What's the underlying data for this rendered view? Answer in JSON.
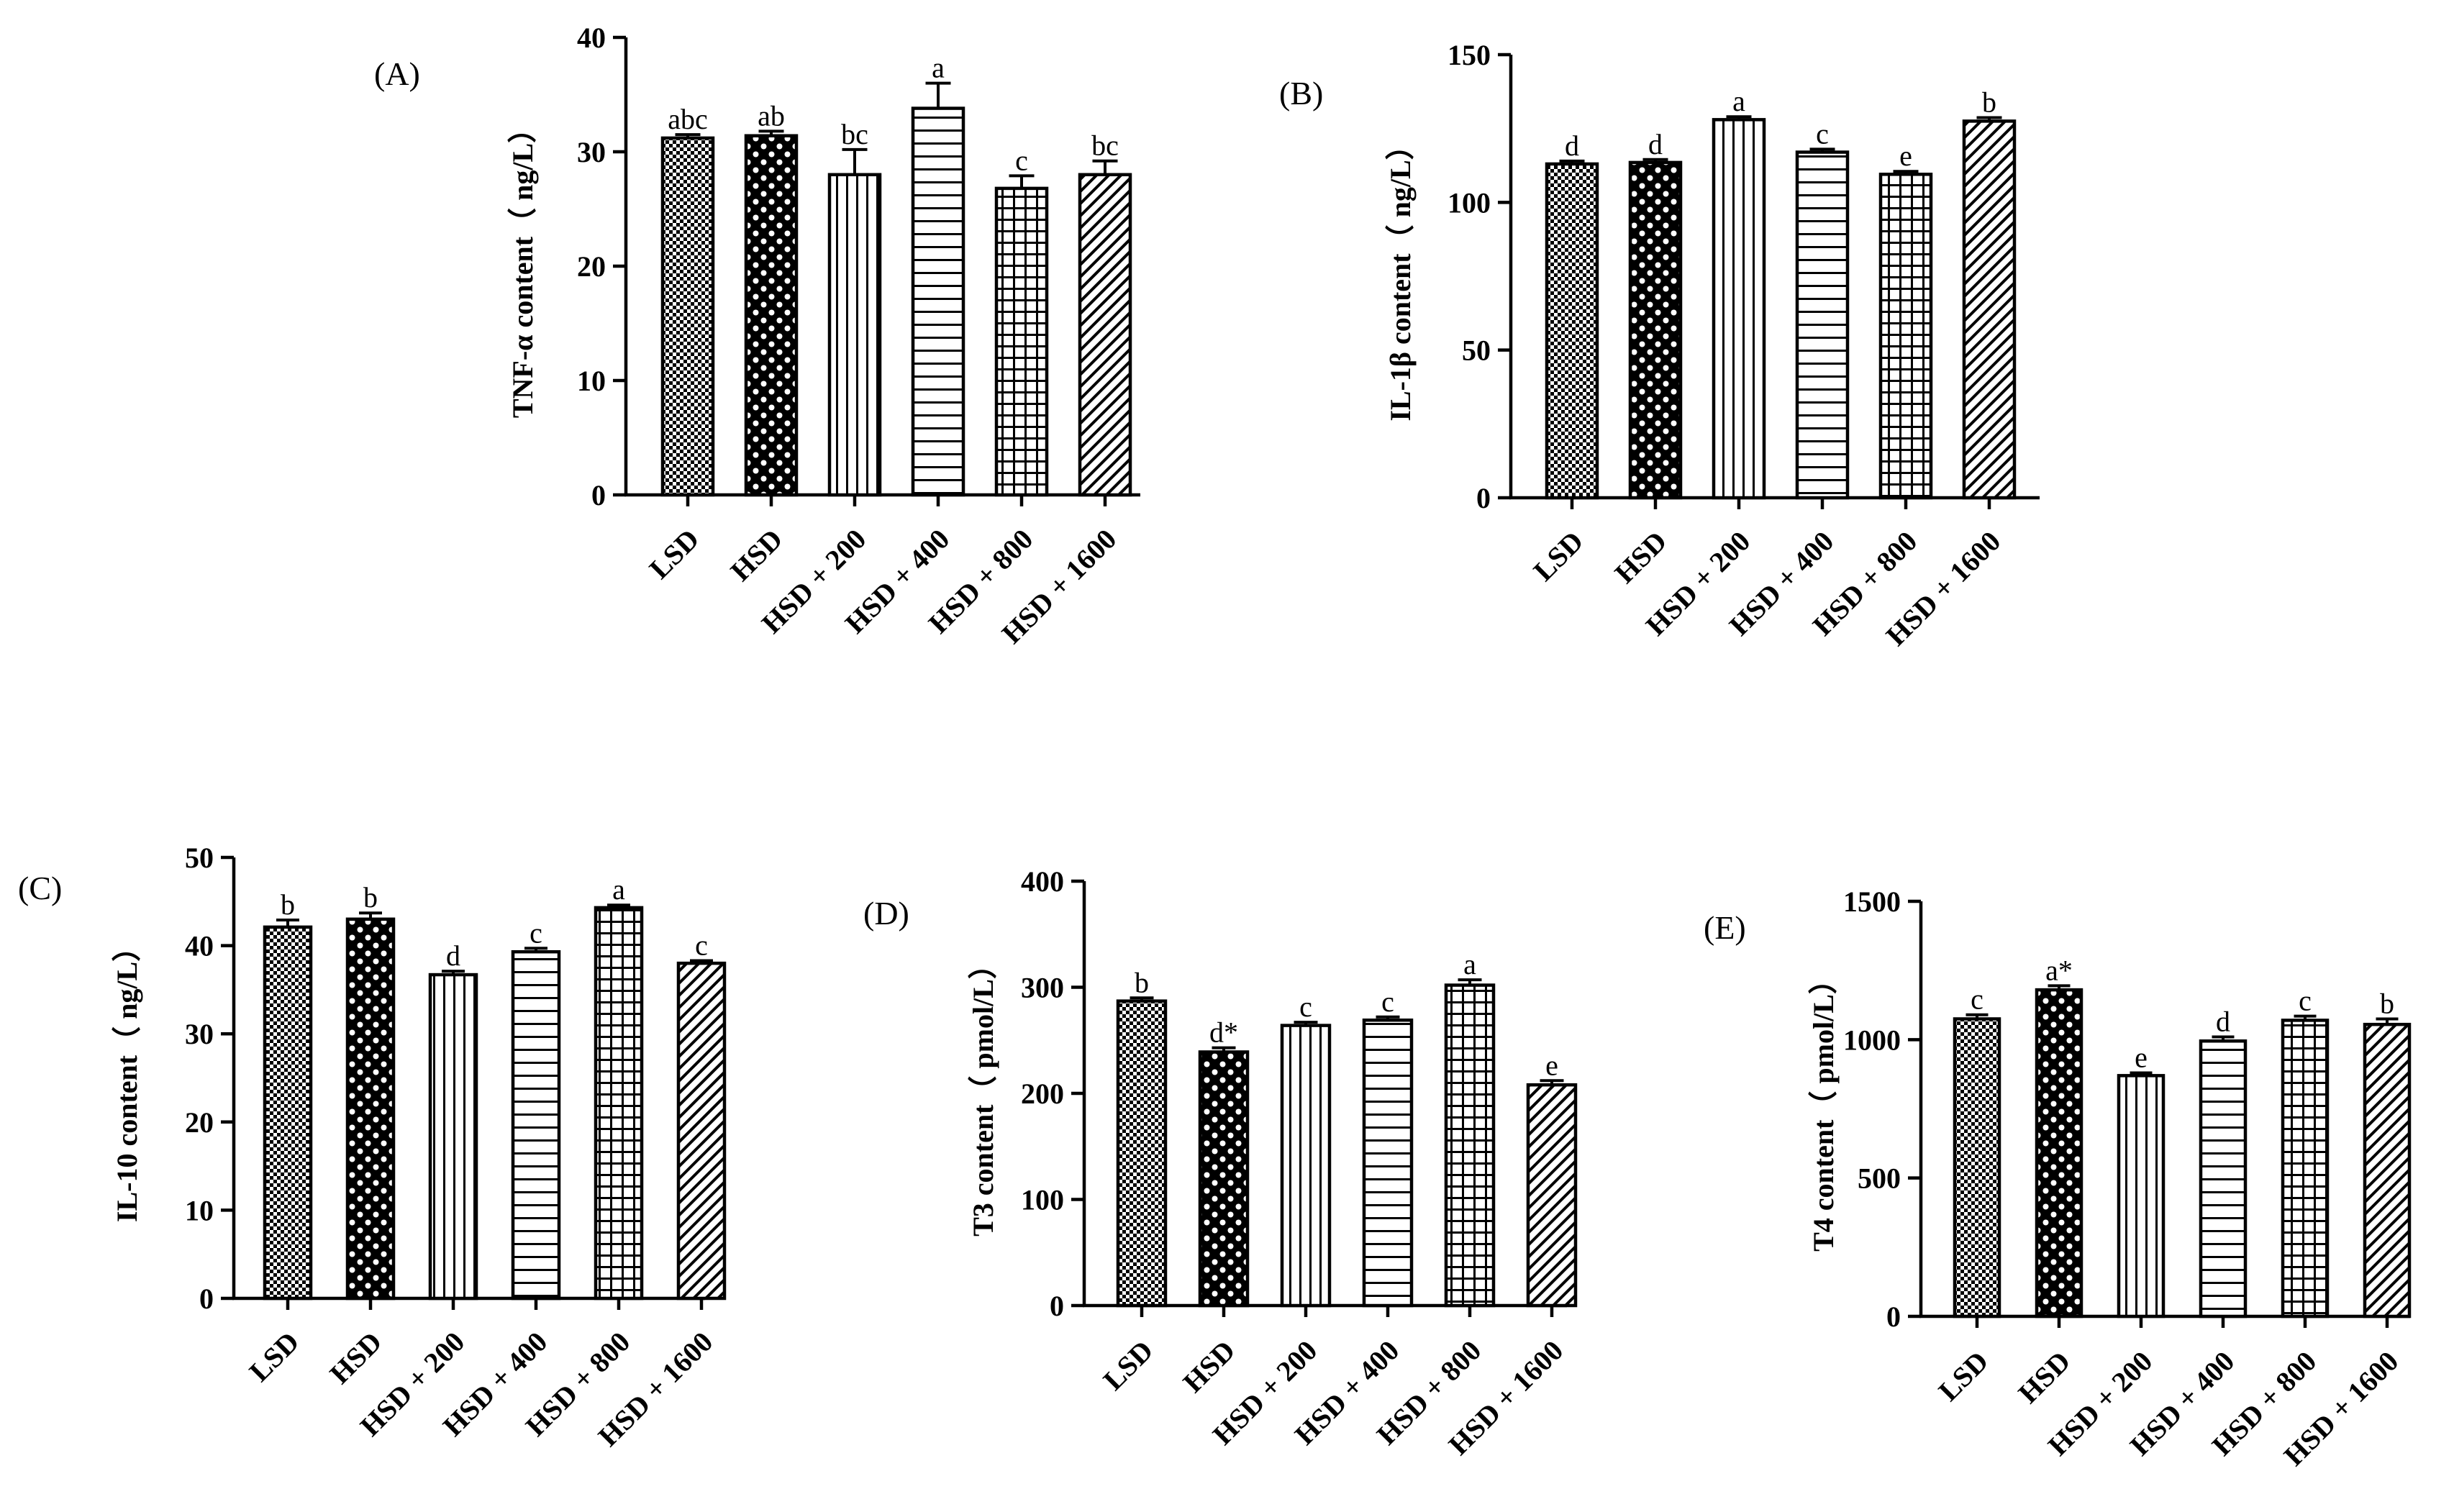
{
  "categories": [
    "LSD",
    "HSD",
    "HSD + 200",
    "HSD + 400",
    "HSD + 800",
    "HSD + 1600"
  ],
  "bar_patterns": [
    "fine-check",
    "check",
    "vertical",
    "horizontal",
    "grid",
    "diagonal"
  ],
  "colors": {
    "ink": "#000000",
    "background": "#ffffff"
  },
  "chart_data": [
    {
      "type": "bar",
      "panel": "(A)",
      "ylabel": "TNF-α content（ ng/L）",
      "ylim": [
        0,
        40
      ],
      "yticks": [
        0,
        10,
        20,
        30,
        40
      ],
      "categories": [
        "LSD",
        "HSD",
        "HSD + 200",
        "HSD + 400",
        "HSD + 800",
        "HSD + 1600"
      ],
      "values": [
        31.2,
        31.4,
        28,
        33.8,
        26.8,
        28
      ],
      "errors": [
        0.3,
        0.4,
        2.2,
        2.2,
        1.1,
        1.2
      ],
      "labels": [
        "abc",
        "ab",
        "bc",
        "a",
        "c",
        "bc"
      ]
    },
    {
      "type": "bar",
      "panel": "(B)",
      "ylabel": "IL-1β content（ ng/L）",
      "ylim": [
        0,
        150
      ],
      "yticks": [
        0,
        50,
        100,
        150
      ],
      "categories": [
        "LSD",
        "HSD",
        "HSD + 200",
        "HSD + 400",
        "HSD + 800",
        "HSD + 1600"
      ],
      "values": [
        113,
        113.5,
        128,
        117,
        109.5,
        127.5
      ],
      "errors": [
        1,
        1,
        1,
        1,
        1,
        1.2
      ],
      "labels": [
        "d",
        "d",
        "a",
        "c",
        "e",
        "b"
      ]
    },
    {
      "type": "bar",
      "panel": "(C)",
      "ylabel": "IL-10 content（ ng/L）",
      "ylim": [
        0,
        50
      ],
      "yticks": [
        0,
        10,
        20,
        30,
        40,
        50
      ],
      "categories": [
        "LSD",
        "HSD",
        "HSD + 200",
        "HSD + 400",
        "HSD + 800",
        "HSD + 1600"
      ],
      "values": [
        42.1,
        43,
        36.7,
        39.3,
        44.3,
        38
      ],
      "errors": [
        0.8,
        0.7,
        0.4,
        0.4,
        0.3,
        0.3
      ],
      "labels": [
        "b",
        "b",
        "d",
        "c",
        "a",
        "c"
      ]
    },
    {
      "type": "bar",
      "panel": "(D)",
      "ylabel": "T3 content（ pmol/L）",
      "ylim": [
        0,
        400
      ],
      "yticks": [
        0,
        100,
        200,
        300,
        400
      ],
      "categories": [
        "LSD",
        "HSD",
        "HSD + 200",
        "HSD + 400",
        "HSD + 800",
        "HSD + 1600"
      ],
      "values": [
        287,
        239,
        264,
        269,
        302,
        208
      ],
      "errors": [
        3,
        4,
        3,
        3,
        5,
        4
      ],
      "labels": [
        "b",
        "d*",
        "c",
        "c",
        "a",
        "e"
      ]
    },
    {
      "type": "bar",
      "panel": "(E)",
      "ylabel": "T4 content（ pmol/L）",
      "ylim": [
        0,
        1500
      ],
      "yticks": [
        0,
        500,
        1000,
        1500
      ],
      "categories": [
        "LSD",
        "HSD",
        "HSD + 200",
        "HSD + 400",
        "HSD + 800",
        "HSD + 1600"
      ],
      "values": [
        1075,
        1180,
        870,
        995,
        1070,
        1055
      ],
      "errors": [
        15,
        15,
        10,
        15,
        15,
        20
      ],
      "labels": [
        "c",
        "a*",
        "e",
        "d",
        "c",
        "b"
      ]
    }
  ]
}
